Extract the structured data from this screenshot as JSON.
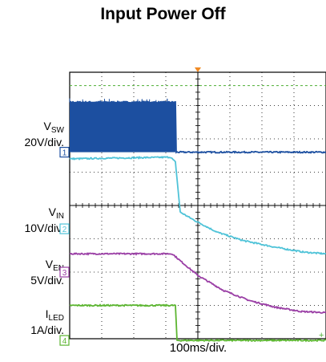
{
  "title": "Input Power Off",
  "chart_data": {
    "type": "line",
    "title": "Input Power Off",
    "xlabel": "100ms/div.",
    "grid": true,
    "channels": [
      {
        "id": "1",
        "label_main": "V",
        "label_sub": "SW",
        "scale": "20V/div.",
        "color": "#1c4fa0"
      },
      {
        "id": "2",
        "label_main": "V",
        "label_sub": "IN",
        "scale": "10V/div.",
        "color": "#4fc3d8"
      },
      {
        "id": "3",
        "label_main": "V",
        "label_sub": "EN",
        "scale": "5V/div.",
        "color": "#9a3ea5"
      },
      {
        "id": "4",
        "label_main": "I",
        "label_sub": "LED",
        "scale": "1A/div.",
        "color": "#5cb531"
      }
    ],
    "x_range_div": [
      0,
      8
    ],
    "y_range_div": [
      0,
      8
    ],
    "series": [
      {
        "channel": "1",
        "x_div": [
          0,
          3.3,
          3.3,
          8
        ],
        "y_div": [
          7.1,
          7.1,
          5.6,
          5.6
        ],
        "switching_until_div": 3.3
      },
      {
        "channel": "2",
        "x_div": [
          0,
          3.15,
          3.3,
          3.45,
          3.9,
          4.6,
          5.4,
          6.4,
          7.3,
          8
        ],
        "y_div": [
          5.4,
          5.45,
          5.3,
          3.8,
          3.55,
          3.2,
          2.95,
          2.75,
          2.6,
          2.55
        ]
      },
      {
        "channel": "3",
        "x_div": [
          0,
          3.2,
          3.5,
          4.0,
          4.8,
          5.6,
          6.4,
          7.2,
          8
        ],
        "y_div": [
          2.55,
          2.55,
          2.3,
          1.9,
          1.45,
          1.15,
          0.95,
          0.82,
          0.78
        ]
      },
      {
        "channel": "4",
        "x_div": [
          0,
          3.3,
          3.35,
          8
        ],
        "y_div": [
          1.0,
          1.0,
          -0.05,
          -0.05
        ]
      }
    ]
  }
}
